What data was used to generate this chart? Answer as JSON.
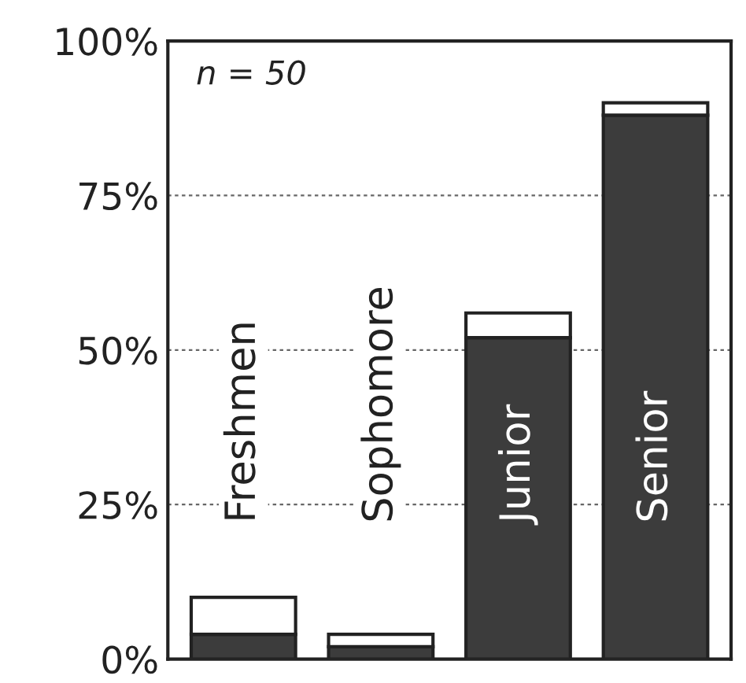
{
  "chart_data": {
    "type": "bar",
    "stacked": true,
    "categories": [
      "Freshmen",
      "Sophomore",
      "Junior",
      "Senior"
    ],
    "series": [
      {
        "color": "#3c3c3c",
        "values": [
          4,
          2,
          52,
          88
        ]
      },
      {
        "color": "#ffffff",
        "values": [
          6,
          2,
          4,
          2
        ]
      }
    ],
    "ylim": [
      0,
      100
    ],
    "yticks": [
      {
        "value": 0,
        "label": "0%"
      },
      {
        "value": 25,
        "label": "25%"
      },
      {
        "value": 50,
        "label": "50%"
      },
      {
        "value": 75,
        "label": "75%"
      },
      {
        "value": 100,
        "label": "100%"
      }
    ],
    "grid": "y",
    "tick_labels": "y",
    "annotations": [
      "n = 50"
    ]
  }
}
